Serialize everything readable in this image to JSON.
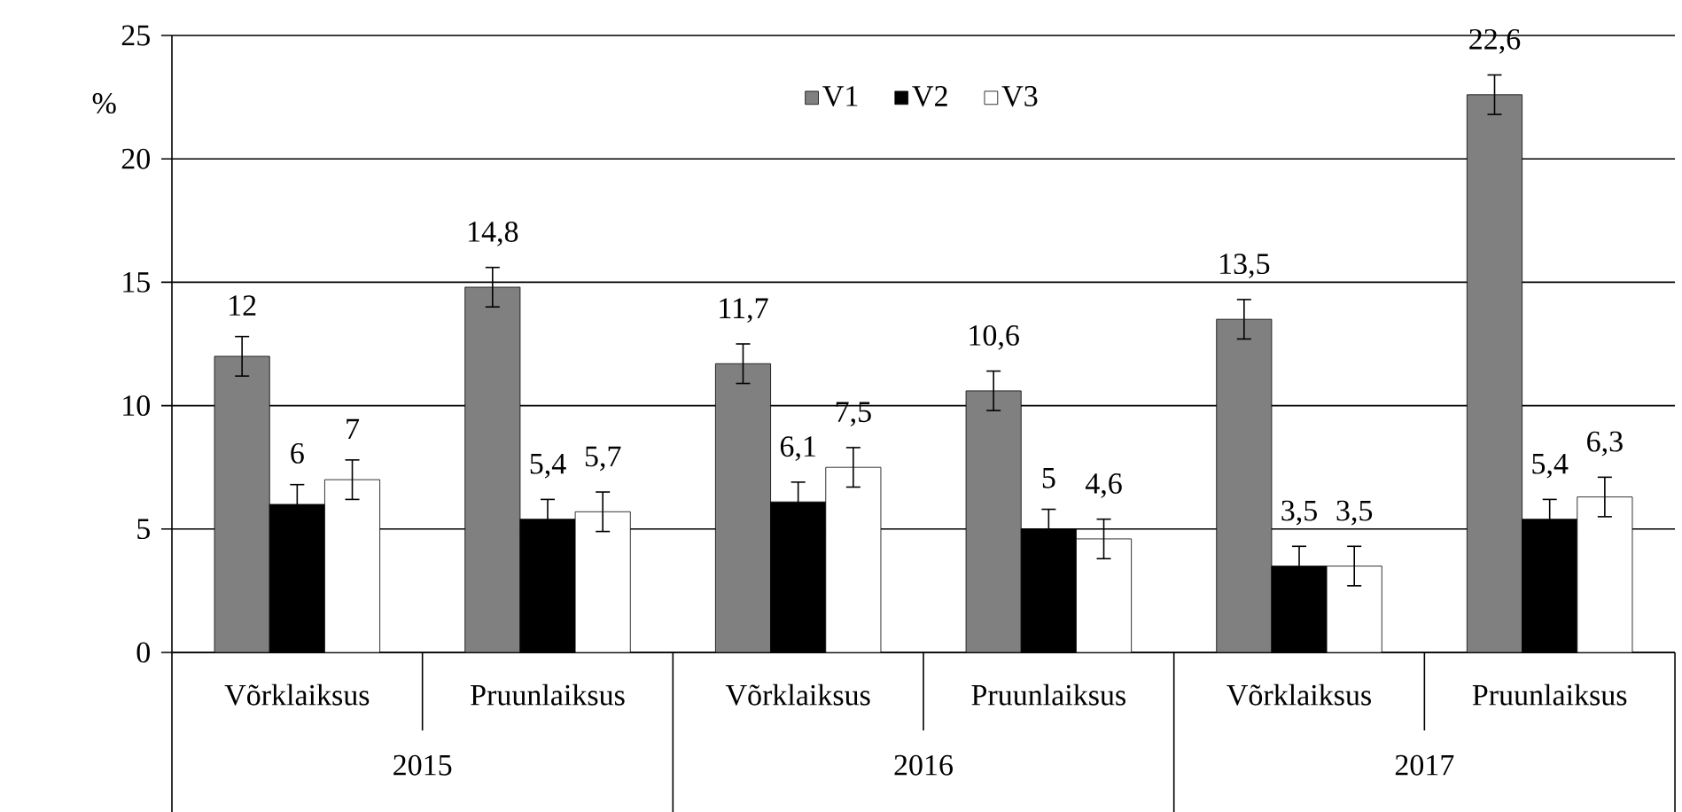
{
  "chart_data": {
    "type": "bar",
    "ylabel": "%",
    "categories": [
      "Võrklaiksus",
      "Pruunlaiksus",
      "Võrklaiksus",
      "Pruunlaiksus",
      "Võrklaiksus",
      "Pruunlaiksus"
    ],
    "series": [
      {
        "name": "V1",
        "color": "#808080",
        "values": [
          12,
          14.8,
          11.7,
          10.6,
          13.5,
          22.6
        ],
        "errors": [
          0.8,
          0.8,
          0.8,
          0.8,
          0.8,
          0.8
        ],
        "value_labels": [
          "12",
          "14,8",
          "11,7",
          "10,6",
          "13,5",
          "22,6"
        ]
      },
      {
        "name": "V2",
        "color": "#000000",
        "values": [
          6,
          5.4,
          6.1,
          5,
          3.5,
          5.4
        ],
        "errors": [
          0.8,
          0.8,
          0.8,
          0.8,
          0.8,
          0.8
        ],
        "value_labels": [
          "6",
          "5,4",
          "6,1",
          "5",
          "3,5",
          "5,4"
        ]
      },
      {
        "name": "V3",
        "color": "#ffffff",
        "values": [
          7,
          5.7,
          7.5,
          4.6,
          3.5,
          6.3
        ],
        "errors": [
          0.8,
          0.8,
          0.8,
          0.8,
          0.8,
          0.8
        ],
        "value_labels": [
          "7",
          "5,7",
          "7,5",
          "4,6",
          "3,5",
          "6,3"
        ]
      }
    ],
    "annotations": [
      "2015",
      "2016",
      "2017"
    ],
    "ylim": [
      0,
      25
    ],
    "yticks": [
      0,
      5,
      10,
      15,
      20,
      25
    ],
    "grid": "y",
    "legend": "top"
  }
}
